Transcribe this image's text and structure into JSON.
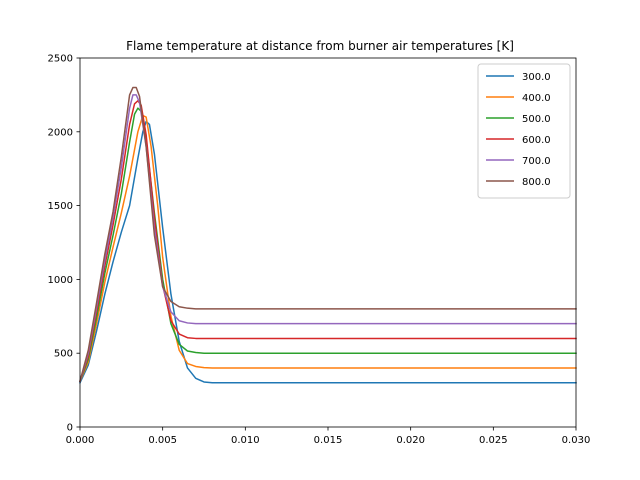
{
  "chart_data": {
    "type": "line",
    "title": "Flame temperature at distance from burner air temperatures [K]",
    "xlabel": "",
    "ylabel": "",
    "xlim": [
      0,
      0.03
    ],
    "ylim": [
      0,
      2500
    ],
    "x_ticks": [
      0,
      0.005,
      0.01,
      0.015,
      0.02,
      0.025,
      0.03
    ],
    "x_tick_labels": [
      "0.000",
      "0.005",
      "0.010",
      "0.015",
      "0.020",
      "0.025",
      "0.030"
    ],
    "y_ticks": [
      0,
      500,
      1000,
      1500,
      2000,
      2500
    ],
    "y_tick_labels": [
      "0",
      "500",
      "1000",
      "1500",
      "2000",
      "2500"
    ],
    "grid": false,
    "legend_position": "top-right",
    "series": [
      {
        "name": "300.0",
        "color": "#1f77b4",
        "x": [
          0,
          0.0005,
          0.001,
          0.0015,
          0.002,
          0.0025,
          0.003,
          0.0035,
          0.0038,
          0.004,
          0.0042,
          0.0045,
          0.005,
          0.0055,
          0.006,
          0.0065,
          0.007,
          0.0075,
          0.008,
          0.009,
          0.01,
          0.03
        ],
        "y": [
          300,
          420,
          650,
          900,
          1120,
          1320,
          1500,
          1820,
          2000,
          2070,
          2050,
          1850,
          1350,
          900,
          580,
          400,
          330,
          305,
          300,
          300,
          300,
          300
        ]
      },
      {
        "name": "400.0",
        "color": "#ff7f0e",
        "x": [
          0,
          0.0005,
          0.001,
          0.0015,
          0.002,
          0.0025,
          0.003,
          0.0035,
          0.0038,
          0.004,
          0.0043,
          0.0047,
          0.005,
          0.0055,
          0.006,
          0.0065,
          0.007,
          0.0075,
          0.008,
          0.01,
          0.03
        ],
        "y": [
          310,
          440,
          700,
          980,
          1220,
          1450,
          1700,
          2000,
          2110,
          2100,
          1900,
          1500,
          1150,
          750,
          520,
          430,
          410,
          402,
          400,
          400,
          400
        ]
      },
      {
        "name": "500.0",
        "color": "#2ca02c",
        "x": [
          0,
          0.0005,
          0.001,
          0.0015,
          0.002,
          0.0025,
          0.003,
          0.0033,
          0.0035,
          0.0037,
          0.004,
          0.0045,
          0.005,
          0.0055,
          0.006,
          0.0065,
          0.007,
          0.0075,
          0.01,
          0.03
        ],
        "y": [
          310,
          460,
          740,
          1040,
          1300,
          1580,
          1930,
          2120,
          2160,
          2140,
          1950,
          1450,
          1000,
          700,
          560,
          515,
          505,
          500,
          500,
          500
        ]
      },
      {
        "name": "600.0",
        "color": "#d62728",
        "x": [
          0,
          0.0005,
          0.001,
          0.0015,
          0.002,
          0.0025,
          0.003,
          0.0033,
          0.0035,
          0.0037,
          0.004,
          0.0045,
          0.005,
          0.0055,
          0.006,
          0.0065,
          0.007,
          0.01,
          0.03
        ],
        "y": [
          310,
          480,
          780,
          1090,
          1370,
          1680,
          2050,
          2190,
          2210,
          2180,
          1980,
          1420,
          960,
          720,
          630,
          605,
          600,
          600,
          600
        ]
      },
      {
        "name": "700.0",
        "color": "#9467bd",
        "x": [
          0,
          0.0005,
          0.001,
          0.0015,
          0.002,
          0.0025,
          0.003,
          0.0032,
          0.0034,
          0.0036,
          0.004,
          0.0045,
          0.005,
          0.0055,
          0.006,
          0.0065,
          0.007,
          0.01,
          0.03
        ],
        "y": [
          310,
          500,
          810,
          1130,
          1420,
          1760,
          2160,
          2250,
          2250,
          2200,
          1900,
          1350,
          950,
          780,
          720,
          705,
          700,
          700,
          700
        ]
      },
      {
        "name": "800.0",
        "color": "#8c564b",
        "x": [
          0,
          0.0005,
          0.001,
          0.0015,
          0.002,
          0.0025,
          0.003,
          0.0032,
          0.0034,
          0.0036,
          0.004,
          0.0045,
          0.005,
          0.0055,
          0.006,
          0.0065,
          0.007,
          0.01,
          0.03
        ],
        "y": [
          310,
          520,
          840,
          1170,
          1460,
          1830,
          2250,
          2300,
          2300,
          2240,
          1900,
          1300,
          950,
          850,
          815,
          805,
          800,
          800,
          800
        ]
      }
    ]
  }
}
